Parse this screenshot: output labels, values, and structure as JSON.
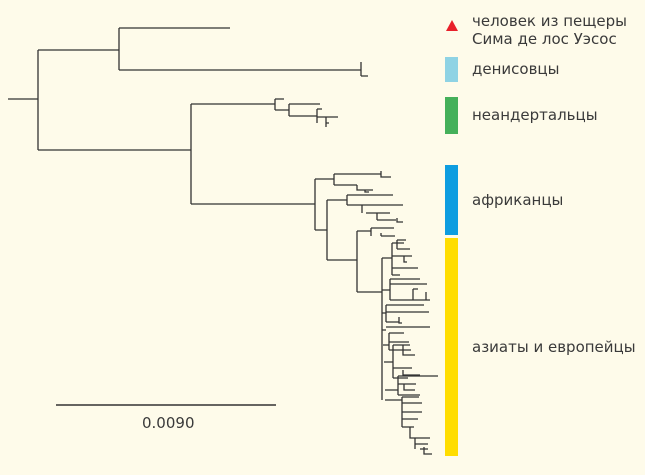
{
  "legend": [
    {
      "label_line1": "человек из пещеры",
      "label_line2": "Сима де лос Уэсос",
      "icon": "triangle",
      "color": "#e8202a"
    },
    {
      "label": "денисовцы",
      "color": "#8fd3e4"
    },
    {
      "label": "неандертальцы",
      "color": "#45b05a"
    },
    {
      "label": "африканцы",
      "color": "#0e9de0"
    },
    {
      "label": "азиаты и европейцы",
      "color": "#ffdd00"
    }
  ],
  "scale_bar": {
    "label": "0.0090"
  }
}
